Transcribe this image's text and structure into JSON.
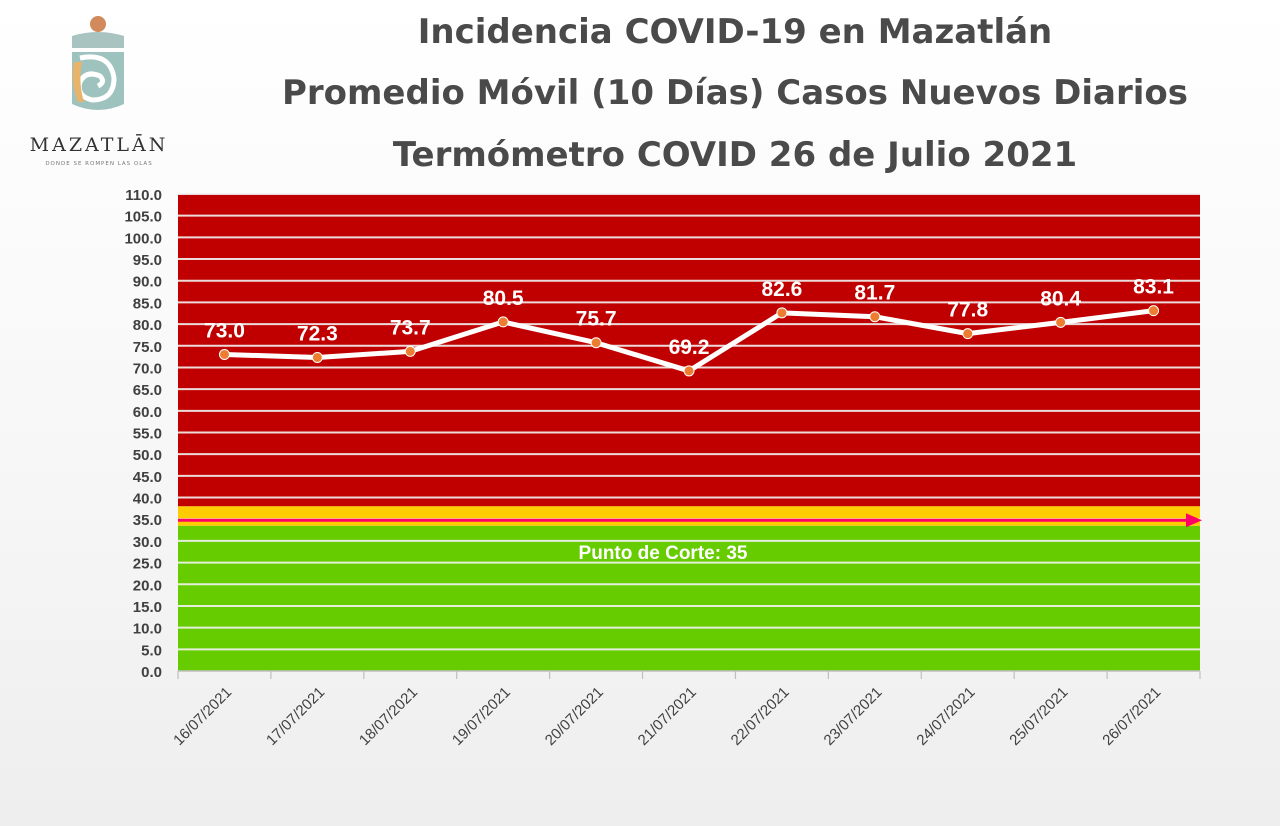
{
  "header": {
    "title_lines": [
      "Incidencia COVID-19 en Mazatlán",
      "Promedio Móvil (10 Días) Casos Nuevos Diarios",
      "Termómetro COVID 26 de Julio 2021"
    ]
  },
  "logo": {
    "wordmark": "MAZATLĀN",
    "tagline": "DONDE SE ROMPEN LAS OLAS"
  },
  "chart_data": {
    "type": "line",
    "categories": [
      "16/07/2021",
      "17/07/2021",
      "18/07/2021",
      "19/07/2021",
      "20/07/2021",
      "21/07/2021",
      "22/07/2021",
      "23/07/2021",
      "24/07/2021",
      "25/07/2021",
      "26/07/2021"
    ],
    "values": [
      73.0,
      72.3,
      73.7,
      80.5,
      75.7,
      69.2,
      82.6,
      81.7,
      77.8,
      80.4,
      83.1
    ],
    "data_labels": [
      "73.0",
      "72.3",
      "73.7",
      "80.5",
      "75.7",
      "69.2",
      "82.6",
      "81.7",
      "77.8",
      "80.4",
      "83.1"
    ],
    "ylim": [
      0,
      110
    ],
    "y_ticks": [
      "0.0",
      "5.0",
      "10.0",
      "15.0",
      "20.0",
      "25.0",
      "30.0",
      "35.0",
      "40.0",
      "45.0",
      "50.0",
      "55.0",
      "60.0",
      "65.0",
      "70.0",
      "75.0",
      "80.0",
      "85.0",
      "90.0",
      "95.0",
      "100.0",
      "105.0",
      "110.0"
    ],
    "grid": true,
    "cutoff": {
      "value": 35,
      "label": "Punto de Corte: 35"
    },
    "bands": [
      {
        "from": 0,
        "to": 33.5,
        "color": "#66cc00"
      },
      {
        "from": 33.5,
        "to": 38,
        "color": "#ffcc00"
      },
      {
        "from": 38,
        "to": 110,
        "color": "#c00000"
      }
    ],
    "line_color": "#ffffff",
    "marker_color": "#ed7d31",
    "cutoff_color": "#ff0066"
  }
}
